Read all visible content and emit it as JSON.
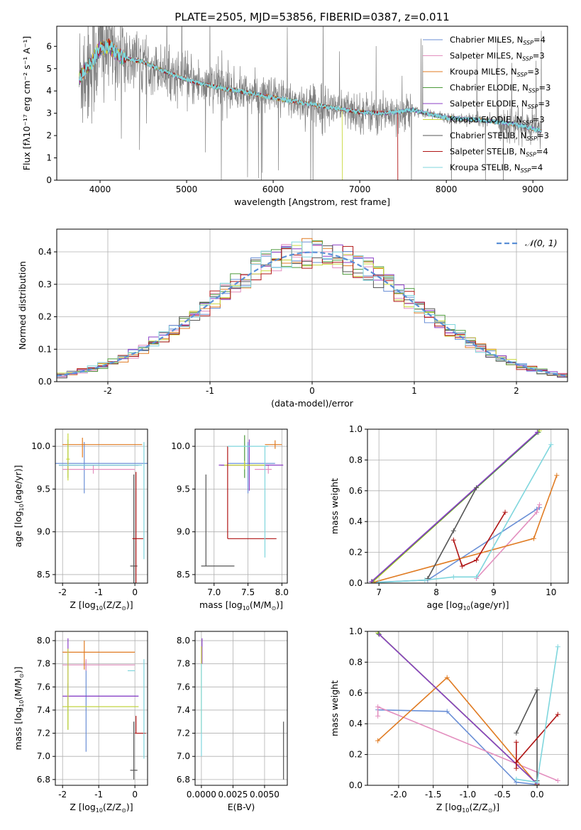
{
  "figure_title": "PLATE=2505, MJD=53856, FIBERID=0387, z=0.011",
  "colors": {
    "chabrier_miles": "#6a8fd6",
    "salpeter_miles": "#e38fbf",
    "kroupa_miles": "#e07b22",
    "chabrier_elodie": "#4c9a3a",
    "salpeter_elodie": "#8b3fc6",
    "kroupa_elodie": "#c8d83c",
    "chabrier_stelib": "#555555",
    "salpeter_stelib": "#b01515",
    "kroupa_stelib": "#7fd6dd",
    "data": "#808080",
    "normal": "#5b8fd6",
    "grid": "#b0b0b0"
  },
  "chart_data": [
    {
      "id": "spectrum",
      "type": "line",
      "xlabel": "wavelength [Angstrom, rest frame]",
      "ylabel": "Flux [f$_\\lambda$10$^{-17}$ erg cm$^{-2}$ s$^{-1}$ A$^{-1}$]",
      "ylabel_display": "Flux [fλ10⁻¹⁷ erg cm⁻² s⁻¹ A⁻¹]",
      "xlim": [
        3500,
        9400
      ],
      "ylim": [
        0,
        6.9
      ],
      "xticks": [
        4000,
        5000,
        6000,
        7000,
        8000,
        9000
      ],
      "yticks": [
        0,
        1,
        2,
        3,
        4,
        5,
        6
      ],
      "grid": false,
      "legend_position": "top-right",
      "legend": [
        {
          "label": "Chabrier MILES, N",
          "sub": "SSP",
          "suffix": "=4",
          "color_key": "chabrier_miles"
        },
        {
          "label": "Salpeter MILES, N",
          "sub": "SSP",
          "suffix": "=3",
          "color_key": "salpeter_miles"
        },
        {
          "label": "Kroupa MILES, N",
          "sub": "SSP",
          "suffix": "=3",
          "color_key": "kroupa_miles"
        },
        {
          "label": "Chabrier ELODIE, N",
          "sub": "SSP",
          "suffix": "=3",
          "color_key": "chabrier_elodie"
        },
        {
          "label": "Salpeter ELODIE, N",
          "sub": "SSP",
          "suffix": "=3",
          "color_key": "salpeter_elodie"
        },
        {
          "label": "Kroupa ELODIE, N",
          "sub": "SSP",
          "suffix": "=3",
          "color_key": "kroupa_elodie"
        },
        {
          "label": "Chabrier STELIB, N",
          "sub": "SSP",
          "suffix": "=3",
          "color_key": "chabrier_stelib"
        },
        {
          "label": "Salpeter STELIB, N",
          "sub": "SSP",
          "suffix": "=4",
          "color_key": "salpeter_stelib"
        },
        {
          "label": "Kroupa STELIB, N",
          "sub": "SSP",
          "suffix": "=4",
          "color_key": "kroupa_stelib"
        }
      ],
      "model_continuum": {
        "x": [
          3760,
          3900,
          4000,
          4100,
          4250,
          4500,
          4800,
          5000,
          5300,
          5600,
          6000,
          6300,
          6600,
          7000,
          7300,
          7600,
          8000,
          8400,
          8800,
          9100
        ],
        "y": [
          4.6,
          5.3,
          5.9,
          6.0,
          5.5,
          5.3,
          4.8,
          4.5,
          4.2,
          4.0,
          3.7,
          3.5,
          3.3,
          3.05,
          3.0,
          3.15,
          2.8,
          2.7,
          2.5,
          2.2
        ]
      }
    },
    {
      "id": "residuals",
      "type": "step",
      "xlabel": "(data-model)/error",
      "ylabel": "Normed distribution",
      "xlim": [
        -2.5,
        2.5
      ],
      "ylim": [
        0,
        0.47
      ],
      "xticks": [
        -2,
        -1,
        0,
        1,
        2
      ],
      "yticks": [
        0.0,
        0.1,
        0.2,
        0.3,
        0.4
      ],
      "grid": true,
      "legend_position": "top-right",
      "legend": [
        {
          "label": "𝒩(0, 1)",
          "color_key": "normal",
          "style": "dashed"
        }
      ],
      "bin_width": 0.1
    },
    {
      "id": "age_vs_z",
      "type": "errorbar",
      "xlabel": "Z [log$_{10}$(Z/Z$_\\odot$)]",
      "ylabel": "age  [log$_{10}$(age/yr)]",
      "xlim": [
        -2.2,
        0.35
      ],
      "ylim": [
        8.4,
        10.2
      ],
      "xticks": [
        -2,
        -1,
        0
      ],
      "yticks": [
        8.5,
        9.0,
        9.5,
        10.0
      ],
      "grid": true,
      "series": [
        {
          "color_key": "chabrier_miles",
          "x": -0.6,
          "x_err": [
            1.6,
            1.6
          ],
          "y": 9.8,
          "y_err": [
            0.35,
            0.25
          ],
          "x_at": -1.4
        },
        {
          "color_key": "salpeter_miles",
          "x": -1.0,
          "x_err": [
            1.0,
            1.0
          ],
          "y": 9.73,
          "y_err": [
            0.05,
            0.05
          ],
          "x_at": -1.15
        },
        {
          "color_key": "kroupa_miles",
          "x": -0.9,
          "x_err": [
            1.1,
            1.1
          ],
          "y": 10.02,
          "y_err": [
            0.15,
            0.08
          ],
          "x_at": -1.45
        },
        {
          "color_key": "chabrier_elodie",
          "x": -1.0,
          "x_err": [
            1.1,
            1.1
          ],
          "y": 9.78,
          "y_err": [
            0.15,
            0.3
          ],
          "x_at": -1.85
        },
        {
          "color_key": "salpeter_elodie",
          "x": -1.0,
          "x_err": [
            1.1,
            1.1
          ],
          "y": 9.78,
          "y_err": [
            0.05,
            0.05
          ],
          "x_at": -1.85
        },
        {
          "color_key": "kroupa_elodie",
          "x": -1.85,
          "x_err": [
            0.05,
            0.05
          ],
          "y": 9.85,
          "y_err": [
            0.25,
            0.3
          ],
          "x_at": -1.85
        },
        {
          "color_key": "chabrier_stelib",
          "x": -0.03,
          "x_err": [
            0.1,
            0.1
          ],
          "y": 8.6,
          "y_err": [
            0.2,
            1.07
          ],
          "x_at": -0.03
        },
        {
          "color_key": "salpeter_stelib",
          "x": 0.03,
          "x_err": [
            0.1,
            0.2
          ],
          "y": 8.92,
          "y_err": [
            0.52,
            0.78
          ],
          "x_at": 0.03
        },
        {
          "color_key": "kroupa_stelib",
          "x": -1.0,
          "x_err": [
            1.1,
            1.2
          ],
          "y": 9.78,
          "y_err": [
            1.1,
            0.27
          ],
          "x_at": 0.25
        }
      ]
    },
    {
      "id": "age_vs_mass",
      "type": "errorbar",
      "xlabel": "mass [log$_{10}$(M/M$_\\odot$)]",
      "ylabel": "",
      "xlim": [
        6.72,
        8.08
      ],
      "ylim": [
        8.4,
        10.2
      ],
      "xticks": [
        7.0,
        7.5,
        8.0
      ],
      "yticks": [
        8.5,
        9.0,
        9.5,
        10.0
      ],
      "grid": true,
      "series": [
        {
          "color_key": "chabrier_miles",
          "x": 7.5,
          "x_err": [
            0.3,
            0.4
          ],
          "y": 9.8,
          "y_err": [
            0.35,
            0.25
          ]
        },
        {
          "color_key": "salpeter_miles",
          "x": 7.8,
          "x_err": [
            0.2,
            0.05
          ],
          "y": 9.73,
          "y_err": [
            0.05,
            0.05
          ]
        },
        {
          "color_key": "kroupa_miles",
          "x": 7.9,
          "x_err": [
            0.15,
            0.1
          ],
          "y": 10.02,
          "y_err": [
            0.05,
            0.05
          ]
        },
        {
          "color_key": "chabrier_elodie",
          "x": 7.45,
          "x_err": [
            0.35,
            0.35
          ],
          "y": 9.78,
          "y_err": [
            0.15,
            0.35
          ]
        },
        {
          "color_key": "salpeter_elodie",
          "x": 7.52,
          "x_err": [
            0.45,
            0.5
          ],
          "y": 9.78,
          "y_err": [
            0.3,
            0.3
          ]
        },
        {
          "color_key": "kroupa_elodie",
          "x": 7.45,
          "x_err": [
            0.3,
            0.3
          ],
          "y": 9.78,
          "y_err": [
            0.05,
            0.05
          ]
        },
        {
          "color_key": "chabrier_stelib",
          "x": 6.88,
          "x_err": [
            0.07,
            0.42
          ],
          "y": 8.6,
          "y_err": [
            0.0,
            1.07
          ]
        },
        {
          "color_key": "salpeter_stelib",
          "x": 7.2,
          "x_err": [
            0.0,
            0.72
          ],
          "y": 8.92,
          "y_err": [
            0.0,
            1.08
          ]
        },
        {
          "color_key": "kroupa_stelib",
          "x": 7.75,
          "x_err": [
            0.55,
            0.05
          ],
          "y": 10.0,
          "y_err": [
            1.3,
            0.0
          ]
        }
      ]
    },
    {
      "id": "mass_weight_vs_age",
      "type": "line",
      "xlabel": "age  [log$_{10}$(age/yr)]",
      "ylabel": "mass weight",
      "xlim": [
        6.8,
        10.3
      ],
      "ylim": [
        0,
        1.0
      ],
      "xticks": [
        7,
        8,
        9,
        10
      ],
      "yticks": [
        0.0,
        0.2,
        0.4,
        0.6,
        0.8,
        1.0
      ],
      "grid": true,
      "series": [
        {
          "color_key": "chabrier_miles",
          "x": [
            6.9,
            7.85,
            9.75,
            9.8
          ],
          "y": [
            0.005,
            0.02,
            0.48,
            0.49
          ]
        },
        {
          "color_key": "salpeter_miles",
          "x": [
            8.7,
            9.75,
            9.8
          ],
          "y": [
            0.03,
            0.46,
            0.51
          ]
        },
        {
          "color_key": "kroupa_miles",
          "x": [
            6.9,
            9.7,
            10.1
          ],
          "y": [
            0.005,
            0.29,
            0.7
          ]
        },
        {
          "color_key": "kroupa_elodie",
          "x": [
            6.9,
            9.8
          ],
          "y": [
            0.01,
            0.99
          ]
        },
        {
          "color_key": "chabrier_elodie",
          "x": [
            6.88,
            9.78
          ],
          "y": [
            0.01,
            0.98
          ]
        },
        {
          "color_key": "salpeter_elodie",
          "x": [
            6.87,
            9.76
          ],
          "y": [
            0.01,
            0.98
          ]
        },
        {
          "color_key": "chabrier_stelib",
          "x": [
            7.85,
            8.3,
            8.7
          ],
          "y": [
            0.03,
            0.34,
            0.62
          ]
        },
        {
          "color_key": "salpeter_stelib",
          "x": [
            8.3,
            8.45,
            8.7,
            9.2
          ],
          "y": [
            0.28,
            0.11,
            0.15,
            0.46
          ]
        },
        {
          "color_key": "kroupa_stelib",
          "x": [
            7.0,
            7.8,
            8.3,
            8.7,
            10.0
          ],
          "y": [
            0.005,
            0.02,
            0.04,
            0.04,
            0.9
          ]
        }
      ]
    },
    {
      "id": "mass_vs_z",
      "type": "errorbar",
      "xlabel": "Z [log$_{10}$(Z/Z$_\\odot$)]",
      "ylabel": "mass [log$_{10}$(M/M$_\\odot$)]",
      "xlim": [
        -2.2,
        0.35
      ],
      "ylim": [
        6.75,
        8.08
      ],
      "xticks": [
        -2,
        -1,
        0
      ],
      "yticks": [
        6.8,
        7.0,
        7.2,
        7.4,
        7.6,
        7.8,
        8.0
      ],
      "grid": true,
      "series": [
        {
          "color_key": "chabrier_miles",
          "x": -0.6,
          "x_err": [
            1.2,
            0.7
          ],
          "y": 7.52,
          "y_err": [
            0.48,
            0.3
          ],
          "x_at": -1.35
        },
        {
          "color_key": "salpeter_miles",
          "x": -1.0,
          "x_err": [
            1.0,
            1.0
          ],
          "y": 7.79,
          "y_err": [
            0.05,
            0.05
          ],
          "x_at": -1.35
        },
        {
          "color_key": "kroupa_miles",
          "x": -1.0,
          "x_err": [
            1.0,
            1.0
          ],
          "y": 7.9,
          "y_err": [
            0.15,
            0.1
          ],
          "x_at": -1.4
        },
        {
          "color_key": "chabrier_elodie",
          "x": -1.0,
          "x_err": [
            1.0,
            1.1
          ],
          "y": 7.43,
          "y_err": [
            0.2,
            0.2
          ],
          "x_at": -1.85
        },
        {
          "color_key": "salpeter_elodie",
          "x": -1.0,
          "x_err": [
            1.0,
            1.1
          ],
          "y": 7.52,
          "y_err": [
            0.1,
            0.5
          ],
          "x_at": -1.85
        },
        {
          "color_key": "kroupa_elodie",
          "x": -1.0,
          "x_err": [
            1.0,
            1.1
          ],
          "y": 7.43,
          "y_err": [
            0.2,
            0.5
          ],
          "x_at": -1.85
        },
        {
          "color_key": "chabrier_stelib",
          "x": -0.03,
          "x_err": [
            0.1,
            0.1
          ],
          "y": 6.88,
          "y_err": [
            0.08,
            0.42
          ],
          "x_at": -0.03
        },
        {
          "color_key": "salpeter_stelib",
          "x": 0.1,
          "x_err": [
            0.1,
            0.2
          ],
          "y": 7.2,
          "y_err": [
            0.0,
            0.15
          ],
          "x_at": 0.03
        },
        {
          "color_key": "kroupa_stelib",
          "x": 0.0,
          "x_err": [
            0.2,
            0.0
          ],
          "y": 7.74,
          "y_err": [
            0.76,
            0.1
          ],
          "x_at": 0.25
        }
      ]
    },
    {
      "id": "mass_vs_ebv",
      "type": "errorbar",
      "xlabel": "E(B-V)",
      "ylabel": "",
      "xlim": [
        -0.0005,
        0.0068
      ],
      "ylim": [
        6.75,
        8.08
      ],
      "xticks": [
        0.0,
        0.0025,
        0.005
      ],
      "xtick_labels": [
        "0.0000",
        "0.0025",
        "0.0050"
      ],
      "yticks": [
        6.8,
        7.0,
        7.2,
        7.4,
        7.6,
        7.8,
        8.0
      ],
      "grid": true,
      "series": [
        {
          "color_key": "salpeter_elodie",
          "x": 5e-05,
          "y": 7.9,
          "y_err": [
            0.1,
            0.12
          ]
        },
        {
          "color_key": "kroupa_elodie",
          "x": 0.0,
          "y": 7.6,
          "y_err": [
            0.4,
            0.35
          ]
        },
        {
          "color_key": "kroupa_stelib",
          "x": 0.0,
          "y": 7.4,
          "y_err": [
            0.4,
            0.4
          ]
        },
        {
          "color_key": "chabrier_stelib",
          "x": 0.0065,
          "y": 7.05,
          "y_err": [
            0.25,
            0.25
          ]
        }
      ]
    },
    {
      "id": "mass_weight_vs_z",
      "type": "line",
      "xlabel": "Z [log$_{10}$(Z/Z$_\\odot$)]",
      "ylabel": "mass weight",
      "xlim": [
        -2.45,
        0.45
      ],
      "ylim": [
        0,
        1.0
      ],
      "xticks": [
        -2.0,
        -1.5,
        -1.0,
        -0.5,
        0.0
      ],
      "yticks": [
        0.0,
        0.2,
        0.4,
        0.6,
        0.8,
        1.0
      ],
      "grid": true,
      "series": [
        {
          "color_key": "chabrier_miles",
          "x": [
            -2.3,
            -1.3,
            -0.3,
            0.0
          ],
          "y": [
            0.49,
            0.48,
            0.02,
            0.005
          ]
        },
        {
          "color_key": "salpeter_miles",
          "x": [
            -2.3,
            -2.3,
            0.3
          ],
          "y": [
            0.45,
            0.51,
            0.03
          ]
        },
        {
          "color_key": "kroupa_miles",
          "x": [
            -2.3,
            -1.3,
            0.0
          ],
          "y": [
            0.29,
            0.7,
            0.005
          ]
        },
        {
          "color_key": "kroupa_elodie",
          "x": [
            -2.3,
            0.0
          ],
          "y": [
            0.99,
            0.01
          ]
        },
        {
          "color_key": "chabrier_elodie",
          "x": [
            -2.29,
            0.0
          ],
          "y": [
            0.985,
            0.01
          ]
        },
        {
          "color_key": "salpeter_elodie",
          "x": [
            -2.28,
            0.0
          ],
          "y": [
            0.98,
            0.01
          ]
        },
        {
          "color_key": "chabrier_stelib",
          "x": [
            -0.3,
            0.0,
            0.0
          ],
          "y": [
            0.34,
            0.62,
            0.03
          ]
        },
        {
          "color_key": "salpeter_stelib",
          "x": [
            -0.3,
            -0.3,
            -0.3,
            0.3
          ],
          "y": [
            0.28,
            0.11,
            0.15,
            0.46
          ]
        },
        {
          "color_key": "kroupa_stelib",
          "x": [
            -0.3,
            0.0,
            0.3
          ],
          "y": [
            0.04,
            0.02,
            0.9
          ]
        }
      ]
    }
  ]
}
